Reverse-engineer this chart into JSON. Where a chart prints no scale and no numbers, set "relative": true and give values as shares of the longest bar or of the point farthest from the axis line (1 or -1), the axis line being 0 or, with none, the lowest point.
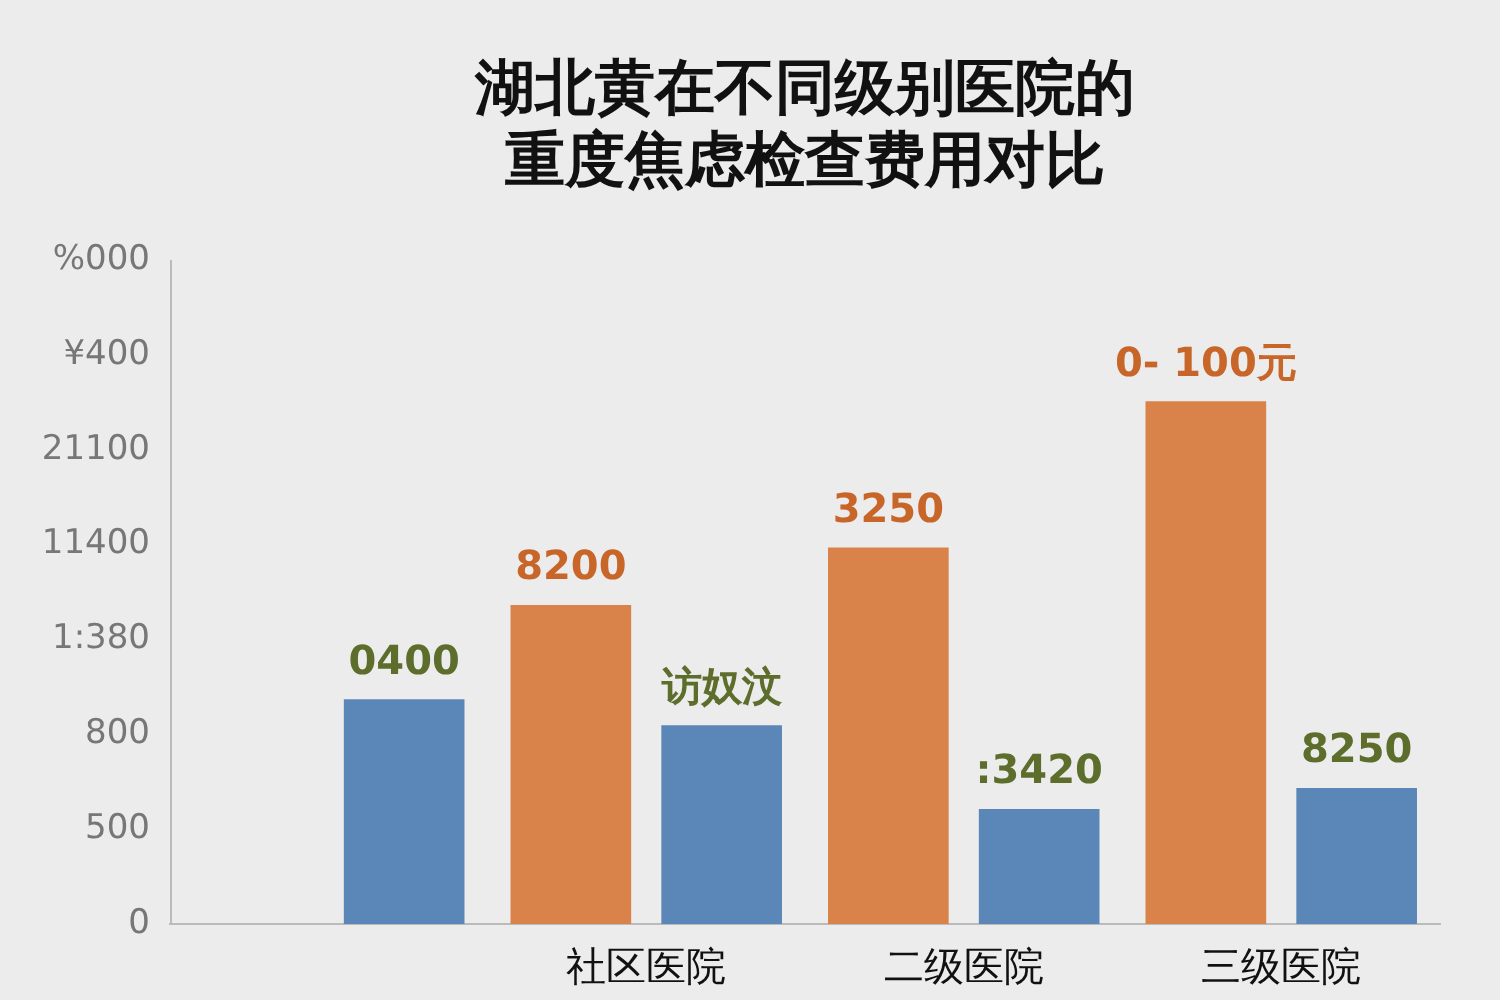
{
  "chart_data": {
    "type": "bar",
    "title": "湖北黄在不同级别医院的重度焦虑检查费用对比",
    "categories": [
      null,
      "社区医院",
      "二级医院",
      "三级医院"
    ],
    "relative": true,
    "legend": false,
    "annotations": [
      "0",
      "500",
      "800",
      "1:380",
      "11400",
      "21100",
      "¥400",
      "%000",
      "8200",
      "3250",
      "0- 100元",
      "0400",
      "访奴汶",
      ":3420",
      "8250"
    ],
    "series": [
      {
        "color": "#d9834a",
        "values": [
          null,
          0.61,
          0.72,
          1
        ]
      },
      {
        "color": "#5b87b8",
        "values": [
          0.43,
          0.38,
          0.22,
          0.26
        ]
      }
    ]
  }
}
